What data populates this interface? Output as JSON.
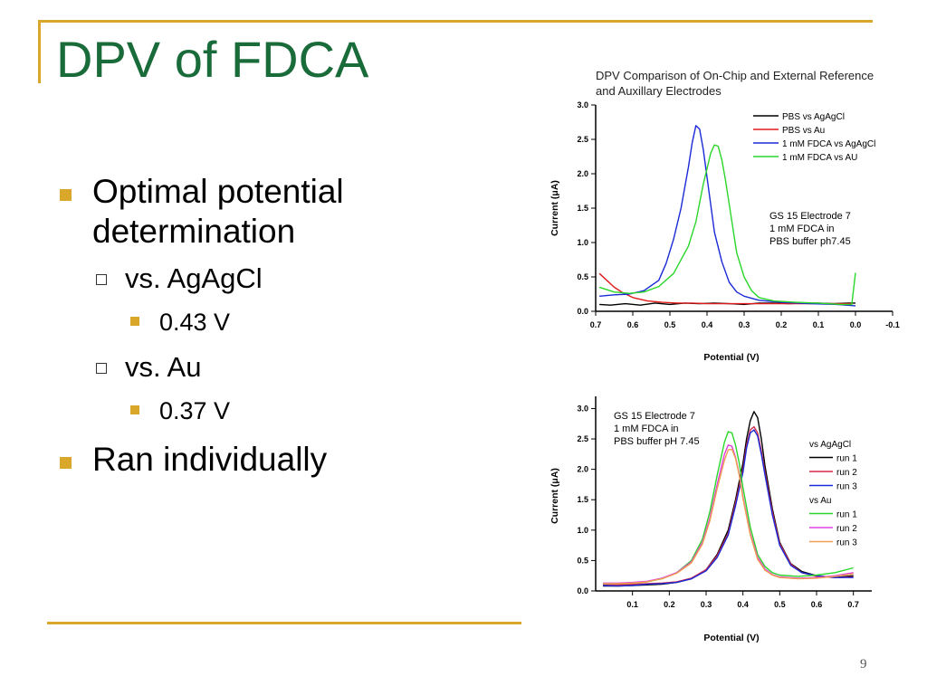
{
  "slide": {
    "title": "DPV of FDCA",
    "page_number": "9",
    "colors": {
      "title": "#1a6b3a",
      "accent": "#d9a72a"
    }
  },
  "bullets": {
    "b1": "Optimal potential determination",
    "b1_sub1": "vs. AgAgCl",
    "b1_sub1_val": "0.43 V",
    "b1_sub2": "vs. Au",
    "b1_sub2_val": "0.37 V",
    "b2": "Ran individually"
  },
  "chart_data": [
    {
      "type": "line",
      "title_line1": "DPV Comparison of On-Chip and External Reference",
      "title_line2": "and Auxillary Electrodes",
      "xlabel": "Potential (V)",
      "ylabel": "Current (μA)",
      "xlim": [
        0.7,
        -0.1
      ],
      "ylim": [
        0.0,
        3.0
      ],
      "x_ticks": [
        "0.7",
        "0.6",
        "0.5",
        "0.4",
        "0.3",
        "0.2",
        "0.1",
        "0.0",
        "-0.1"
      ],
      "y_ticks": [
        "0.0",
        "0.5",
        "1.0",
        "1.5",
        "2.0",
        "2.5",
        "3.0"
      ],
      "annotation": [
        "GS 15 Electrode 7",
        "1 mM FDCA in",
        "PBS buffer ph7.45"
      ],
      "legend_position": "top-right",
      "series": [
        {
          "name": "PBS vs AgAgCl",
          "color": "#000000",
          "x": [
            0.69,
            0.66,
            0.62,
            0.58,
            0.54,
            0.5,
            0.46,
            0.42,
            0.38,
            0.34,
            0.3,
            0.26,
            0.22,
            0.18,
            0.14,
            0.1,
            0.06,
            0.02,
            0.0
          ],
          "y": [
            0.1,
            0.09,
            0.11,
            0.09,
            0.12,
            0.1,
            0.12,
            0.11,
            0.12,
            0.11,
            0.1,
            0.12,
            0.12,
            0.11,
            0.12,
            0.12,
            0.11,
            0.12,
            0.12
          ]
        },
        {
          "name": "PBS vs Au",
          "color": "#e21a1a",
          "x": [
            0.69,
            0.67,
            0.65,
            0.63,
            0.6,
            0.56,
            0.52,
            0.48,
            0.44,
            0.4,
            0.36,
            0.32,
            0.28,
            0.24,
            0.2,
            0.16,
            0.12,
            0.08,
            0.04,
            0.01
          ],
          "y": [
            0.55,
            0.45,
            0.35,
            0.28,
            0.2,
            0.15,
            0.13,
            0.12,
            0.12,
            0.11,
            0.11,
            0.11,
            0.11,
            0.11,
            0.11,
            0.11,
            0.11,
            0.11,
            0.11,
            0.11
          ]
        },
        {
          "name": "1 mM FDCA vs AgAgCl",
          "color": "#1a2ad6",
          "x": [
            0.69,
            0.65,
            0.61,
            0.57,
            0.53,
            0.51,
            0.49,
            0.47,
            0.45,
            0.44,
            0.43,
            0.42,
            0.41,
            0.4,
            0.39,
            0.38,
            0.36,
            0.34,
            0.32,
            0.3,
            0.26,
            0.2,
            0.12,
            0.05,
            0.0
          ],
          "y": [
            0.22,
            0.24,
            0.25,
            0.3,
            0.45,
            0.7,
            1.05,
            1.5,
            2.1,
            2.45,
            2.7,
            2.65,
            2.35,
            1.95,
            1.55,
            1.15,
            0.72,
            0.42,
            0.28,
            0.22,
            0.16,
            0.13,
            0.11,
            0.1,
            0.08
          ]
        },
        {
          "name": "1 mM FDCA vs AU",
          "color": "#2ad62a",
          "x": [
            0.69,
            0.65,
            0.61,
            0.57,
            0.53,
            0.49,
            0.45,
            0.43,
            0.41,
            0.39,
            0.38,
            0.37,
            0.36,
            0.35,
            0.34,
            0.33,
            0.32,
            0.3,
            0.28,
            0.26,
            0.22,
            0.16,
            0.1,
            0.04,
            0.01,
            0.0
          ],
          "y": [
            0.35,
            0.28,
            0.26,
            0.28,
            0.36,
            0.55,
            0.95,
            1.3,
            1.85,
            2.3,
            2.42,
            2.4,
            2.2,
            1.9,
            1.55,
            1.2,
            0.85,
            0.5,
            0.3,
            0.2,
            0.15,
            0.13,
            0.12,
            0.1,
            0.1,
            0.56
          ]
        }
      ]
    },
    {
      "type": "line",
      "xlabel": "Potential (V)",
      "ylabel": "Current (μA)",
      "xlim": [
        0.0,
        0.75
      ],
      "ylim": [
        0.0,
        3.2
      ],
      "x_ticks": [
        "0.1",
        "0.2",
        "0.3",
        "0.4",
        "0.5",
        "0.6",
        "0.7"
      ],
      "y_ticks": [
        "0.0",
        "0.5",
        "1.0",
        "1.5",
        "2.0",
        "2.5",
        "3.0"
      ],
      "annotation": [
        "GS 15 Electrode 7",
        "1 mM FDCA in",
        "PBS buffer pH 7.45"
      ],
      "legend_position": "right",
      "legend_groups": [
        "vs AgAgCl",
        "vs Au"
      ],
      "series": [
        {
          "name": "run 1",
          "group": "vs AgAgCl",
          "color": "#000000",
          "x": [
            0.02,
            0.06,
            0.1,
            0.14,
            0.18,
            0.22,
            0.26,
            0.3,
            0.33,
            0.36,
            0.38,
            0.4,
            0.41,
            0.42,
            0.43,
            0.44,
            0.45,
            0.46,
            0.48,
            0.5,
            0.53,
            0.56,
            0.6,
            0.65,
            0.7
          ],
          "y": [
            0.08,
            0.08,
            0.09,
            0.1,
            0.11,
            0.14,
            0.2,
            0.35,
            0.6,
            1.0,
            1.5,
            2.1,
            2.5,
            2.8,
            2.95,
            2.85,
            2.5,
            2.05,
            1.35,
            0.8,
            0.45,
            0.32,
            0.25,
            0.22,
            0.25
          ]
        },
        {
          "name": "run 2",
          "group": "vs AgAgCl",
          "color": "#d62a4a",
          "x": [
            0.02,
            0.06,
            0.1,
            0.14,
            0.18,
            0.22,
            0.26,
            0.3,
            0.33,
            0.36,
            0.38,
            0.4,
            0.41,
            0.42,
            0.43,
            0.44,
            0.45,
            0.46,
            0.48,
            0.5,
            0.53,
            0.56,
            0.6,
            0.65,
            0.7
          ],
          "y": [
            0.1,
            0.1,
            0.11,
            0.12,
            0.13,
            0.15,
            0.21,
            0.35,
            0.58,
            0.95,
            1.45,
            2.0,
            2.4,
            2.65,
            2.7,
            2.6,
            2.3,
            1.95,
            1.3,
            0.78,
            0.44,
            0.3,
            0.24,
            0.22,
            0.23
          ]
        },
        {
          "name": "run 3",
          "group": "vs AgAgCl",
          "color": "#1a2ad6",
          "x": [
            0.02,
            0.06,
            0.1,
            0.14,
            0.18,
            0.22,
            0.26,
            0.3,
            0.33,
            0.36,
            0.38,
            0.4,
            0.41,
            0.42,
            0.43,
            0.44,
            0.45,
            0.46,
            0.48,
            0.5,
            0.53,
            0.56,
            0.6,
            0.65,
            0.7
          ],
          "y": [
            0.09,
            0.08,
            0.09,
            0.11,
            0.12,
            0.14,
            0.2,
            0.33,
            0.55,
            0.92,
            1.4,
            1.95,
            2.35,
            2.6,
            2.65,
            2.55,
            2.25,
            1.9,
            1.25,
            0.75,
            0.42,
            0.3,
            0.25,
            0.22,
            0.22
          ]
        },
        {
          "name": "run 1",
          "group": "vs Au",
          "color": "#2ad62a",
          "x": [
            0.02,
            0.06,
            0.1,
            0.14,
            0.18,
            0.22,
            0.26,
            0.29,
            0.31,
            0.33,
            0.35,
            0.36,
            0.37,
            0.38,
            0.39,
            0.4,
            0.42,
            0.44,
            0.46,
            0.48,
            0.5,
            0.55,
            0.6,
            0.65,
            0.7
          ],
          "y": [
            0.12,
            0.12,
            0.13,
            0.15,
            0.2,
            0.3,
            0.5,
            0.85,
            1.3,
            1.9,
            2.45,
            2.62,
            2.6,
            2.4,
            2.1,
            1.7,
            1.05,
            0.6,
            0.4,
            0.3,
            0.26,
            0.24,
            0.26,
            0.3,
            0.38
          ]
        },
        {
          "name": "run 2",
          "group": "vs Au",
          "color": "#e040e0",
          "x": [
            0.02,
            0.06,
            0.1,
            0.14,
            0.18,
            0.22,
            0.26,
            0.29,
            0.31,
            0.33,
            0.35,
            0.36,
            0.37,
            0.38,
            0.39,
            0.4,
            0.42,
            0.44,
            0.46,
            0.48,
            0.5,
            0.55,
            0.6,
            0.65,
            0.7
          ],
          "y": [
            0.13,
            0.13,
            0.14,
            0.16,
            0.21,
            0.3,
            0.48,
            0.8,
            1.2,
            1.75,
            2.25,
            2.4,
            2.38,
            2.2,
            1.92,
            1.55,
            0.95,
            0.55,
            0.36,
            0.27,
            0.23,
            0.21,
            0.22,
            0.25,
            0.3
          ]
        },
        {
          "name": "run 3",
          "group": "vs Au",
          "color": "#f0a050",
          "x": [
            0.02,
            0.06,
            0.1,
            0.14,
            0.18,
            0.22,
            0.26,
            0.29,
            0.31,
            0.33,
            0.35,
            0.36,
            0.37,
            0.38,
            0.39,
            0.4,
            0.42,
            0.44,
            0.46,
            0.48,
            0.5,
            0.55,
            0.6,
            0.65,
            0.7
          ],
          "y": [
            0.12,
            0.12,
            0.13,
            0.15,
            0.2,
            0.29,
            0.46,
            0.77,
            1.15,
            1.68,
            2.15,
            2.32,
            2.33,
            2.18,
            1.9,
            1.52,
            0.92,
            0.52,
            0.34,
            0.26,
            0.22,
            0.2,
            0.21,
            0.24,
            0.28
          ]
        }
      ]
    }
  ]
}
